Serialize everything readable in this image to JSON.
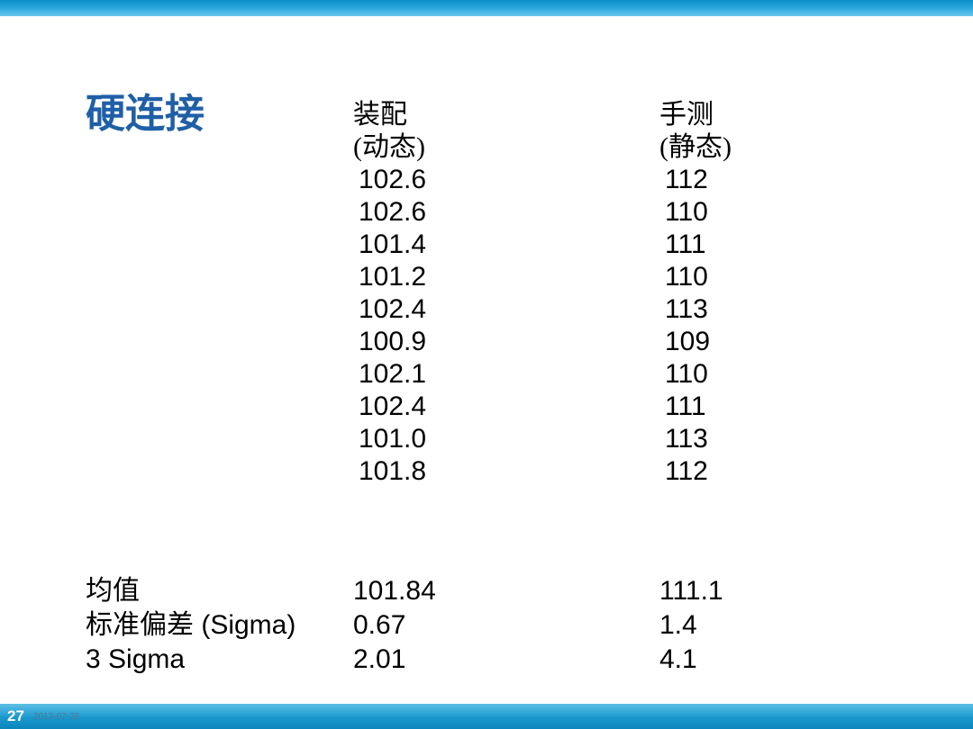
{
  "title": "硬连接",
  "columns": {
    "col1": {
      "header_line1": "装配",
      "header_line2": "(动态)",
      "values": [
        "102.6",
        "102.6",
        "101.4",
        "101.2",
        "102.4",
        "100.9",
        "102.1",
        "102.4",
        "101.0",
        "101.8"
      ]
    },
    "col2": {
      "header_line1": "手测",
      "header_line2": "(静态)",
      "values": [
        "112",
        "110",
        "111",
        "110",
        "113",
        "109",
        "110",
        "111",
        "113",
        "112"
      ]
    }
  },
  "stats": {
    "labels": [
      "均值",
      "标准偏差 (Sigma)",
      "3 Sigma"
    ],
    "col1": [
      "101.84",
      "0.67",
      "2.01"
    ],
    "col2": [
      "111.1",
      "1.4",
      "4.1"
    ]
  },
  "footer": {
    "page": "27",
    "date": "2013-07-28"
  },
  "colors": {
    "title": "#1f5fa6",
    "top_bar_from": "#0a8fc9",
    "top_bar_to": "#6dc7ea",
    "bottom_bar_from": "#5fbfe5",
    "bottom_bar_to": "#0b86bd",
    "text": "#000000"
  },
  "typography": {
    "title_size": 44,
    "body_size": 30,
    "footer_page_size": 17,
    "footer_date_size": 10
  }
}
